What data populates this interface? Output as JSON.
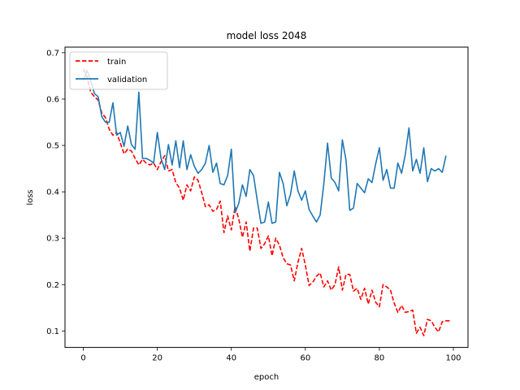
{
  "chart_data": {
    "type": "line",
    "title": "model loss 2048",
    "xlabel": "epoch",
    "ylabel": "loss",
    "xlim": [
      -4.95,
      103.95
    ],
    "ylim": [
      0.0645,
      0.712
    ],
    "xticks": [
      0,
      20,
      40,
      60,
      80,
      100
    ],
    "yticks": [
      0.1,
      0.2,
      0.3,
      0.4,
      0.5,
      0.6,
      0.7
    ],
    "legend_position": "upper-left",
    "series": [
      {
        "name": "train",
        "color": "#ff0000",
        "style": "dashed",
        "values": [
          0.665,
          0.648,
          0.615,
          0.605,
          0.598,
          0.57,
          0.56,
          0.535,
          0.522,
          0.528,
          0.505,
          0.482,
          0.492,
          0.488,
          0.472,
          0.458,
          0.47,
          0.462,
          0.458,
          0.462,
          0.448,
          0.465,
          0.478,
          0.445,
          0.448,
          0.42,
          0.408,
          0.382,
          0.415,
          0.402,
          0.432,
          0.425,
          0.398,
          0.368,
          0.372,
          0.358,
          0.362,
          0.38,
          0.312,
          0.348,
          0.318,
          0.368,
          0.342,
          0.302,
          0.335,
          0.272,
          0.322,
          0.322,
          0.278,
          0.288,
          0.305,
          0.262,
          0.3,
          0.285,
          0.258,
          0.245,
          0.242,
          0.208,
          0.248,
          0.278,
          0.242,
          0.198,
          0.205,
          0.218,
          0.225,
          0.195,
          0.208,
          0.188,
          0.2,
          0.238,
          0.188,
          0.222,
          0.222,
          0.186,
          0.192,
          0.168,
          0.192,
          0.158,
          0.188,
          0.162,
          0.152,
          0.2,
          0.195,
          0.188,
          0.16,
          0.14,
          0.155,
          0.14,
          0.142,
          0.145,
          0.095,
          0.108,
          0.09,
          0.125,
          0.122,
          0.108,
          0.098,
          0.12,
          0.122,
          0.122
        ]
      },
      {
        "name": "validation",
        "color": "#1f77b4",
        "style": "solid",
        "values": [
          0.64,
          0.662,
          0.64,
          0.612,
          0.605,
          0.562,
          0.55,
          0.55,
          0.592,
          0.522,
          0.528,
          0.498,
          0.542,
          0.502,
          0.492,
          0.615,
          0.472,
          0.472,
          0.468,
          0.462,
          0.528,
          0.472,
          0.448,
          0.502,
          0.458,
          0.51,
          0.452,
          0.51,
          0.448,
          0.48,
          0.455,
          0.44,
          0.448,
          0.462,
          0.5,
          0.442,
          0.462,
          0.418,
          0.415,
          0.435,
          0.492,
          0.355,
          0.375,
          0.415,
          0.39,
          0.448,
          0.435,
          0.382,
          0.332,
          0.335,
          0.378,
          0.332,
          0.335,
          0.442,
          0.418,
          0.37,
          0.395,
          0.445,
          0.402,
          0.382,
          0.402,
          0.362,
          0.348,
          0.335,
          0.35,
          0.418,
          0.505,
          0.43,
          0.42,
          0.402,
          0.512,
          0.468,
          0.36,
          0.365,
          0.418,
          0.408,
          0.398,
          0.428,
          0.42,
          0.46,
          0.495,
          0.425,
          0.448,
          0.408,
          0.408,
          0.462,
          0.44,
          0.48,
          0.538,
          0.445,
          0.47,
          0.44,
          0.495,
          0.422,
          0.45,
          0.445,
          0.45,
          0.442,
          0.478
        ]
      }
    ]
  }
}
